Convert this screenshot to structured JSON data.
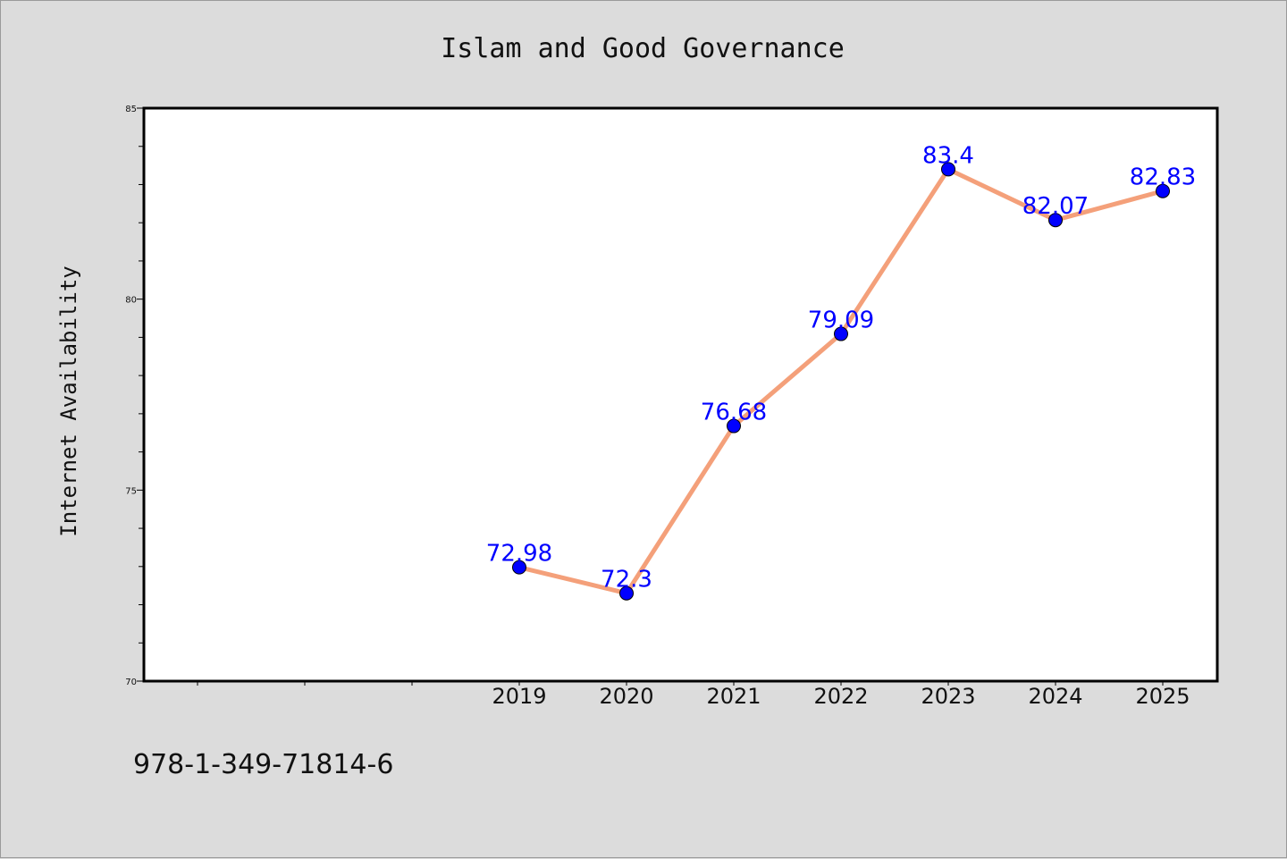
{
  "chart_data": {
    "type": "line",
    "title": "Islam and Good Governance",
    "xlabel": "",
    "ylabel": "Internet Availability",
    "categories": [
      "2019",
      "2020",
      "2021",
      "2022",
      "2023",
      "2024",
      "2025"
    ],
    "values": [
      72.98,
      72.3,
      76.68,
      79.09,
      83.4,
      82.07,
      82.83
    ],
    "data_labels": [
      "72.98",
      "72.3",
      "76.68",
      "79.09",
      "83.4",
      "82.07",
      "82.83"
    ],
    "ylim": [
      70,
      85
    ],
    "y_ticks": [
      "70",
      "75",
      "80",
      "85"
    ],
    "grid": false,
    "line_color": "#f4a07a",
    "marker_color": "#0000ff",
    "label_color": "#0000ff"
  },
  "footer": {
    "isbn": "978-1-349-71814-6"
  }
}
